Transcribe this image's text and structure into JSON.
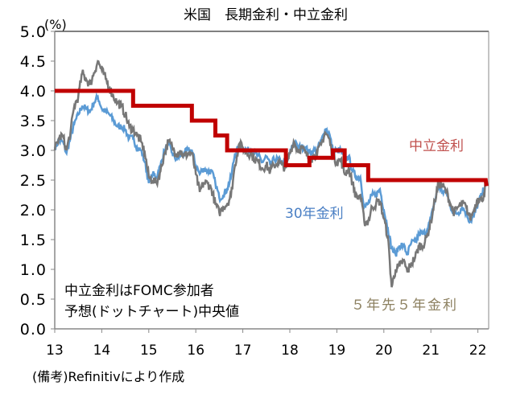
{
  "chart_data": {
    "type": "line",
    "title": "米国　長期金利・中立金利",
    "ylabel": "(%)",
    "ylim": [
      0,
      5
    ],
    "yticks": [
      "0.0",
      "0.5",
      "1.0",
      "1.5",
      "2.0",
      "2.5",
      "3.0",
      "3.5",
      "4.0",
      "4.5",
      "5.0"
    ],
    "xlim": [
      "2013-01",
      "2022-03"
    ],
    "xticks": [
      "13",
      "14",
      "15",
      "16",
      "17",
      "18",
      "19",
      "20",
      "21",
      "22"
    ],
    "grid": false,
    "colors": {
      "neutral": "#c00000",
      "y30": "#5b9bd5",
      "fwd5y5y": "#777777",
      "label5y5y": "#8c8060",
      "label30": "#4a7fc4",
      "labelNeutral": "#c0504d"
    },
    "series": [
      {
        "name": "30年金利",
        "start": "2013-01",
        "freq": "monthly",
        "values": [
          3.05,
          3.15,
          3.15,
          2.95,
          3.2,
          3.45,
          3.6,
          3.75,
          3.7,
          3.65,
          3.8,
          3.9,
          3.7,
          3.65,
          3.6,
          3.5,
          3.4,
          3.4,
          3.35,
          3.2,
          3.2,
          3.05,
          3.0,
          2.8,
          2.45,
          2.6,
          2.55,
          2.75,
          3.0,
          3.1,
          2.95,
          2.85,
          2.9,
          2.95,
          3.0,
          3.0,
          2.75,
          2.6,
          2.7,
          2.65,
          2.65,
          2.45,
          2.2,
          2.25,
          2.35,
          2.55,
          2.95,
          3.05,
          3.05,
          3.0,
          3.0,
          2.95,
          2.9,
          2.8,
          2.9,
          2.75,
          2.85,
          2.85,
          2.8,
          2.75,
          2.95,
          3.15,
          3.05,
          3.05,
          3.05,
          2.95,
          3.0,
          3.0,
          3.15,
          3.35,
          3.3,
          3.0,
          3.0,
          3.0,
          2.85,
          2.9,
          2.65,
          2.55,
          2.55,
          2.05,
          2.1,
          2.25,
          2.25,
          2.35,
          2.0,
          1.7,
          1.35,
          1.25,
          1.4,
          1.4,
          1.25,
          1.45,
          1.45,
          1.6,
          1.6,
          1.65,
          1.85,
          2.15,
          2.4,
          2.3,
          2.3,
          2.05,
          1.95,
          1.95,
          2.05,
          1.95,
          1.8,
          1.9,
          2.1,
          2.25,
          2.45
        ]
      },
      {
        "name": "５年先５年金利",
        "start": "2013-01",
        "freq": "monthly",
        "values": [
          3.0,
          3.2,
          3.25,
          3.0,
          3.3,
          3.75,
          3.9,
          4.3,
          4.2,
          4.1,
          4.3,
          4.5,
          4.35,
          4.2,
          4.05,
          3.9,
          3.8,
          3.75,
          3.6,
          3.4,
          3.35,
          3.25,
          3.15,
          2.95,
          2.55,
          2.5,
          2.45,
          2.65,
          2.95,
          3.15,
          3.05,
          2.95,
          3.0,
          2.9,
          2.95,
          2.95,
          2.6,
          2.3,
          2.45,
          2.45,
          2.35,
          2.1,
          1.95,
          2.05,
          2.1,
          2.25,
          2.75,
          3.1,
          3.05,
          2.95,
          2.95,
          2.85,
          2.8,
          2.7,
          2.75,
          2.65,
          2.75,
          2.8,
          2.75,
          2.7,
          2.95,
          3.15,
          3.0,
          3.05,
          2.95,
          2.85,
          2.9,
          2.95,
          3.1,
          3.3,
          3.2,
          2.9,
          2.8,
          2.85,
          2.6,
          2.7,
          2.45,
          2.2,
          2.25,
          1.8,
          1.8,
          2.05,
          2.1,
          2.15,
          1.85,
          1.55,
          0.7,
          1.0,
          1.05,
          1.15,
          0.95,
          1.1,
          1.2,
          1.4,
          1.4,
          1.55,
          1.8,
          2.15,
          2.45,
          2.4,
          2.3,
          2.1,
          1.95,
          2.05,
          2.1,
          2.05,
          1.85,
          2.0,
          2.2,
          2.15,
          2.4
        ]
      },
      {
        "name": "中立金利",
        "step": true,
        "points": [
          [
            "2013-01",
            4.0
          ],
          [
            "2014-09",
            3.75
          ],
          [
            "2015-12",
            3.5
          ],
          [
            "2016-06",
            3.25
          ],
          [
            "2016-09",
            3.0
          ],
          [
            "2017-12",
            2.75
          ],
          [
            "2018-06",
            2.875
          ],
          [
            "2018-12",
            3.0
          ],
          [
            "2019-03",
            2.75
          ],
          [
            "2019-09",
            2.5
          ],
          [
            "2022-03",
            2.4
          ]
        ]
      }
    ],
    "annotations": {
      "neutral_label": "中立金利",
      "y30_label": "30年金利",
      "fwd_label": "５年先５年金利",
      "note_line1": "中立金利はFOMC参加者",
      "note_line2": "予想(ドットチャート)中央値"
    },
    "source": "(備考)Refinitivにより作成"
  }
}
